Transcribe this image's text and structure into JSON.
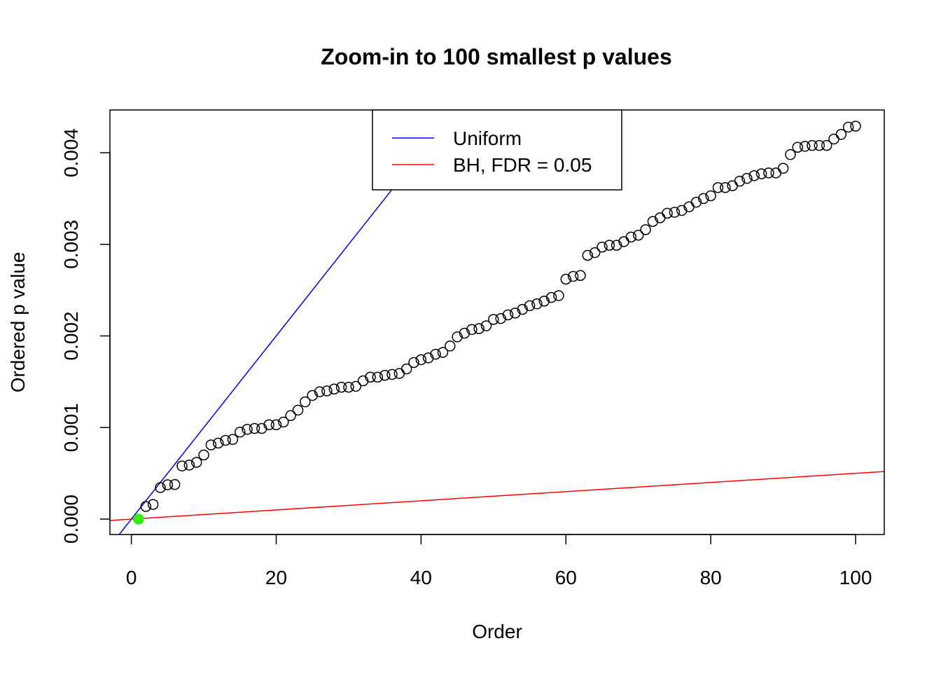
{
  "chart_data": {
    "type": "scatter",
    "title": "Zoom-in to 100 smallest p values",
    "xlabel": "Order",
    "ylabel": "Ordered p value",
    "xlim": [
      -2.96,
      103.96
    ],
    "ylim": [
      -0.000168,
      0.004467
    ],
    "xticks": [
      0,
      20,
      40,
      60,
      80,
      100
    ],
    "xtick_labels": [
      "0",
      "20",
      "40",
      "60",
      "80",
      "100"
    ],
    "yticks": [
      0,
      0.001,
      0.002,
      0.003,
      0.004
    ],
    "ytick_labels": [
      "0.000",
      "0.001",
      "0.002",
      "0.003",
      "0.004"
    ],
    "grid": false,
    "legend": {
      "placement": "top-center",
      "entries": [
        {
          "label": "Uniform",
          "color": "#0000ff"
        },
        {
          "label": "BH, FDR = 0.05",
          "color": "#ff0000"
        }
      ]
    },
    "lines": [
      {
        "name": "Uniform",
        "slope": 0.0001,
        "intercept": 0,
        "color": "#0000ff"
      },
      {
        "name": "BH, FDR = 0.05",
        "slope": 5e-06,
        "intercept": 0,
        "color": "#ff0000"
      }
    ],
    "highlight": {
      "indices": [
        1
      ],
      "color": "#33ee11"
    },
    "series": [
      {
        "name": "ordered p values",
        "x": [
          1,
          2,
          3,
          4,
          5,
          6,
          7,
          8,
          9,
          10,
          11,
          12,
          13,
          14,
          15,
          16,
          17,
          18,
          19,
          20,
          21,
          22,
          23,
          24,
          25,
          26,
          27,
          28,
          29,
          30,
          31,
          32,
          33,
          34,
          35,
          36,
          37,
          38,
          39,
          40,
          41,
          42,
          43,
          44,
          45,
          46,
          47,
          48,
          49,
          50,
          51,
          52,
          53,
          54,
          55,
          56,
          57,
          58,
          59,
          60,
          61,
          62,
          63,
          64,
          65,
          66,
          67,
          68,
          69,
          70,
          71,
          72,
          73,
          74,
          75,
          76,
          77,
          78,
          79,
          80,
          81,
          82,
          83,
          84,
          85,
          86,
          87,
          88,
          89,
          90,
          91,
          92,
          93,
          94,
          95,
          96,
          97,
          98,
          99,
          100
        ],
        "y": [
          5e-07,
          0.000138,
          0.00016,
          0.000344,
          0.000375,
          0.000378,
          0.00058,
          0.00059,
          0.00062,
          0.0007,
          0.00081,
          0.00083,
          0.00086,
          0.00087,
          0.00095,
          0.00098,
          0.00099,
          0.00099,
          0.00103,
          0.00103,
          0.00106,
          0.00113,
          0.00119,
          0.00128,
          0.00135,
          0.00139,
          0.0014,
          0.00142,
          0.00144,
          0.00144,
          0.00145,
          0.00151,
          0.00155,
          0.00155,
          0.00157,
          0.00158,
          0.00159,
          0.00164,
          0.00171,
          0.00174,
          0.00176,
          0.0018,
          0.00182,
          0.00189,
          0.00199,
          0.00203,
          0.00207,
          0.00208,
          0.00211,
          0.00218,
          0.00219,
          0.00223,
          0.00225,
          0.00229,
          0.00233,
          0.00235,
          0.00238,
          0.00242,
          0.00244,
          0.00262,
          0.00265,
          0.00266,
          0.00288,
          0.00291,
          0.00297,
          0.00299,
          0.00299,
          0.00303,
          0.00308,
          0.0031,
          0.00316,
          0.00325,
          0.00329,
          0.00334,
          0.00335,
          0.00337,
          0.00341,
          0.00346,
          0.0035,
          0.00353,
          0.00362,
          0.00362,
          0.00364,
          0.00369,
          0.00372,
          0.00375,
          0.00377,
          0.00378,
          0.00378,
          0.00383,
          0.00398,
          0.00406,
          0.00407,
          0.00408,
          0.00408,
          0.00408,
          0.00415,
          0.0042,
          0.00428,
          0.00429
        ]
      }
    ]
  }
}
